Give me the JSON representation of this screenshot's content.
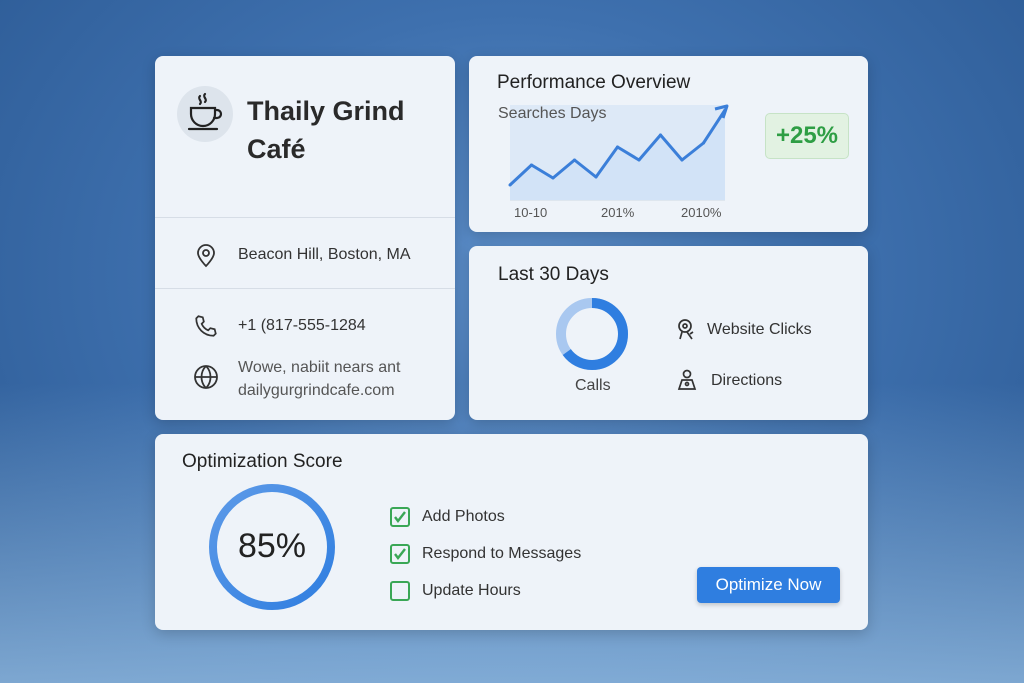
{
  "business": {
    "name": "Thaily Grind Café",
    "address": "Beacon Hill, Boston, MA",
    "phone": "+1 (817-555-1284",
    "website_line1": "Wowe, nabiit nears ant",
    "website_line2": "dailygurgrindcafe.com",
    "logo_icon": "coffee-cup-icon"
  },
  "performance": {
    "title": "Performance Overview",
    "subtitle": "Searches Days",
    "change_badge": "+25%",
    "badge_color": "#2e9e44",
    "chart_data": {
      "type": "line",
      "x_ticks": [
        "10-10",
        "201%",
        "2010%"
      ],
      "values": [
        15,
        35,
        22,
        40,
        23,
        53,
        40,
        65,
        40,
        57,
        90
      ],
      "trend": "up",
      "line_color": "#3b7fd9"
    }
  },
  "last30": {
    "title": "Last 30 Days",
    "donut_label": "Calls",
    "donut_fraction": 0.65,
    "items": [
      {
        "label": "Website Clicks",
        "icon": "key-person-icon"
      },
      {
        "label": "Directions",
        "icon": "person-pin-icon"
      }
    ]
  },
  "optimization": {
    "title": "Optimization Score",
    "score": "85%",
    "score_value": 85,
    "tasks": [
      {
        "label": "Add Photos",
        "checked": true
      },
      {
        "label": "Respond to Messages",
        "checked": true
      },
      {
        "label": "Update Hours",
        "checked": false
      }
    ],
    "button": "Optimize Now"
  },
  "colors": {
    "accent": "#2f7ee0",
    "check": "#3aa756"
  }
}
